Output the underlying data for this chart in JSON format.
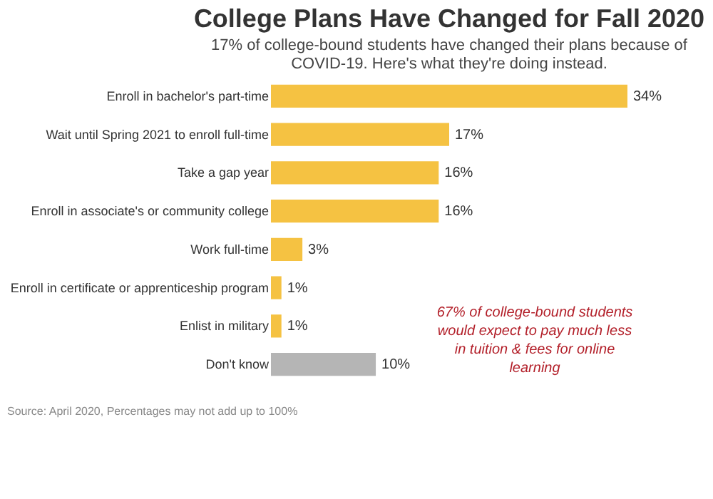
{
  "chart_data": {
    "type": "bar",
    "orientation": "horizontal",
    "title": "College Plans Have Changed for Fall 2020",
    "subtitle": "17% of college-bound students have changed their plans because of COVID-19. Here's what they're doing instead.",
    "categories": [
      "Enroll in bachelor's part-time",
      "Wait until Spring 2021 to enroll full-time",
      "Take a gap year",
      "Enroll in associate's or community college",
      "Work full-time",
      "Enroll in certificate or apprenticeship program",
      "Enlist in military",
      "Don't know"
    ],
    "values": [
      34,
      17,
      16,
      16,
      3,
      1,
      1,
      10
    ],
    "colors": [
      "#f5c242",
      "#f5c242",
      "#f5c242",
      "#f5c242",
      "#f5c242",
      "#f5c242",
      "#f5c242",
      "#b5b5b5"
    ],
    "value_labels": [
      "34%",
      "17%",
      "16%",
      "16%",
      "3%",
      "1%",
      "1%",
      "10%"
    ],
    "annotations": [
      "67% of college-bound students would expect to pay much less in tuition & fees for online learning",
      "Source: April 2020, Percentages may not add up to 100%"
    ]
  }
}
